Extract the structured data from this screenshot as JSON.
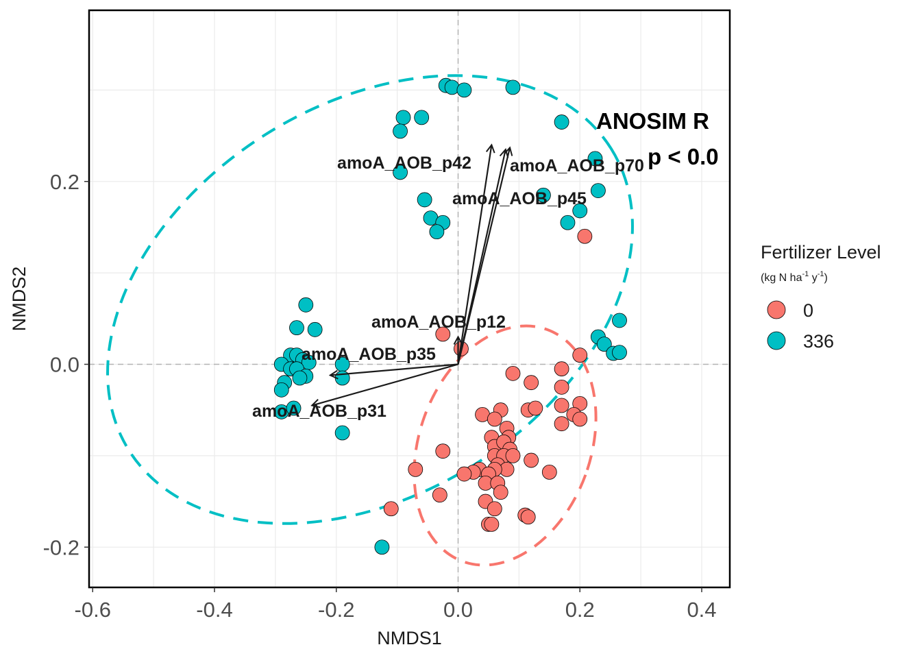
{
  "chart_data": {
    "type": "scatter",
    "xlabel": "NMDS1",
    "ylabel": "NMDS2",
    "xlim": [
      -0.6,
      0.45
    ],
    "ylim": [
      -0.245,
      0.385
    ],
    "x_ticks": [
      "-0.6",
      "-0.4",
      "-0.2",
      "0.0",
      "0.2",
      "0.4"
    ],
    "y_ticks": [
      "-0.2",
      "0.0",
      "0.2"
    ],
    "grid": true,
    "reference_lines": {
      "x": 0,
      "y": 0,
      "style": "dashed",
      "color": "#b3b3b3"
    },
    "legend": {
      "title": "Fertilizer Level",
      "subtitle": {
        "base": "(kg N ha",
        "exp1": "-1",
        "mid": " y",
        "exp2": "-1",
        "end": ")"
      },
      "position": "right"
    },
    "annotations": [
      {
        "text": "ANOSIM R",
        "x": 0.225,
        "y": 0.265
      },
      {
        "text": "p < 0.0",
        "x": 0.31,
        "y": 0.225
      }
    ],
    "series": [
      {
        "name": "0",
        "color": "#F8766D",
        "points": [
          [
            0.09,
            -0.01
          ],
          [
            0.12,
            -0.02
          ],
          [
            0.17,
            -0.005
          ],
          [
            0.2,
            0.01
          ],
          [
            0.17,
            -0.025
          ],
          [
            0.17,
            -0.045
          ],
          [
            0.2,
            -0.043
          ],
          [
            0.19,
            -0.055
          ],
          [
            0.2,
            -0.06
          ],
          [
            0.17,
            -0.065
          ],
          [
            0.115,
            -0.05
          ],
          [
            0.127,
            -0.048
          ],
          [
            0.04,
            -0.055
          ],
          [
            0.07,
            -0.05
          ],
          [
            0.06,
            -0.06
          ],
          [
            0.08,
            -0.07
          ],
          [
            0.055,
            -0.08
          ],
          [
            0.083,
            -0.08
          ],
          [
            0.06,
            -0.09
          ],
          [
            0.075,
            -0.085
          ],
          [
            0.085,
            -0.093
          ],
          [
            0.06,
            -0.1
          ],
          [
            0.075,
            -0.1
          ],
          [
            0.09,
            -0.1
          ],
          [
            0.12,
            -0.105
          ],
          [
            0.065,
            -0.11
          ],
          [
            0.08,
            -0.115
          ],
          [
            0.06,
            -0.115
          ],
          [
            0.035,
            -0.115
          ],
          [
            0.025,
            -0.118
          ],
          [
            0.01,
            -0.12
          ],
          [
            0.05,
            -0.12
          ],
          [
            0.15,
            -0.118
          ],
          [
            0.045,
            -0.13
          ],
          [
            0.065,
            -0.13
          ],
          [
            0.07,
            -0.14
          ],
          [
            0.045,
            -0.15
          ],
          [
            0.06,
            -0.158
          ],
          [
            0.11,
            -0.165
          ],
          [
            0.115,
            -0.167
          ],
          [
            0.05,
            -0.175
          ],
          [
            0.055,
            -0.175
          ],
          [
            -0.025,
            -0.095
          ],
          [
            -0.07,
            -0.115
          ],
          [
            -0.03,
            -0.143
          ],
          [
            -0.11,
            -0.158
          ],
          [
            -0.025,
            0.033
          ],
          [
            0.005,
            0.017
          ],
          [
            0.208,
            0.14
          ]
        ]
      },
      {
        "name": "336",
        "color": "#00BFC4",
        "points": [
          [
            -0.02,
            0.305
          ],
          [
            -0.01,
            0.303
          ],
          [
            0.01,
            0.3
          ],
          [
            0.09,
            0.303
          ],
          [
            0.17,
            0.265
          ],
          [
            -0.09,
            0.27
          ],
          [
            -0.06,
            0.27
          ],
          [
            -0.095,
            0.255
          ],
          [
            0.225,
            0.225
          ],
          [
            0.23,
            0.19
          ],
          [
            -0.095,
            0.21
          ],
          [
            -0.055,
            0.18
          ],
          [
            0.14,
            0.185
          ],
          [
            0.2,
            0.168
          ],
          [
            0.18,
            0.155
          ],
          [
            -0.045,
            0.16
          ],
          [
            -0.025,
            0.155
          ],
          [
            -0.035,
            0.145
          ],
          [
            0.265,
            0.048
          ],
          [
            0.23,
            0.03
          ],
          [
            0.24,
            0.022
          ],
          [
            0.255,
            0.012
          ],
          [
            0.265,
            0.013
          ],
          [
            -0.25,
            0.065
          ],
          [
            -0.265,
            0.04
          ],
          [
            -0.235,
            0.038
          ],
          [
            -0.275,
            0.01
          ],
          [
            -0.265,
            0.01
          ],
          [
            -0.255,
            0.005
          ],
          [
            -0.245,
            0.002
          ],
          [
            -0.29,
            0.0
          ],
          [
            -0.275,
            -0.005
          ],
          [
            -0.265,
            -0.005
          ],
          [
            -0.25,
            -0.013
          ],
          [
            -0.19,
            0.0
          ],
          [
            -0.19,
            -0.015
          ],
          [
            -0.285,
            -0.02
          ],
          [
            -0.26,
            -0.015
          ],
          [
            -0.29,
            -0.028
          ],
          [
            -0.29,
            -0.052
          ],
          [
            -0.27,
            -0.048
          ],
          [
            -0.19,
            -0.075
          ],
          [
            -0.125,
            -0.2
          ]
        ]
      }
    ],
    "vectors": [
      {
        "label": "amoA_AOB_p42",
        "x": 0.055,
        "y": 0.24
      },
      {
        "label": "amoA_AOB_p70",
        "x": 0.085,
        "y": 0.237
      },
      {
        "label": "amoA_AOB_p45",
        "x": 0.078,
        "y": 0.235
      },
      {
        "label": "amoA_AOB_p12",
        "x": 0.0,
        "y": 0.03
      },
      {
        "label": "amoA_AOB_p35",
        "x": -0.21,
        "y": -0.012
      },
      {
        "label": "amoA_AOB_p31",
        "x": -0.24,
        "y": -0.045
      }
    ],
    "ellipses": [
      {
        "group": "336",
        "color": "#00BFC4",
        "style": "dashed"
      },
      {
        "group": "0",
        "color": "#F8766D",
        "style": "dashed"
      }
    ]
  }
}
